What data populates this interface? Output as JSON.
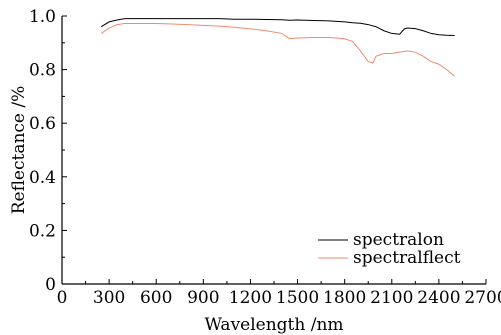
{
  "chart_data": {
    "type": "line",
    "title": "",
    "xlabel": "Wavelength /nm",
    "ylabel": "Reflectance /%",
    "xlim": [
      0,
      2700
    ],
    "ylim": [
      0,
      1.0
    ],
    "x_ticks": [
      0,
      300,
      600,
      900,
      1200,
      1500,
      1800,
      2100,
      2400,
      2700
    ],
    "y_ticks": [
      0,
      0.2,
      0.4,
      0.6,
      0.8,
      1.0
    ],
    "x_tick_labels": [
      "0",
      "300",
      "600",
      "900",
      "1200",
      "1500",
      "1800",
      "2100",
      "2400",
      "2700"
    ],
    "y_tick_labels": [
      "0",
      "0.2",
      "0.4",
      "0.6",
      "0.8",
      "1.0"
    ],
    "grid": false,
    "legend_position": "bottom-right",
    "series": [
      {
        "name": "spectralon",
        "color": "#000000",
        "x": [
          250,
          300,
          350,
          400,
          500,
          600,
          700,
          800,
          900,
          1000,
          1100,
          1200,
          1300,
          1400,
          1450,
          1500,
          1600,
          1700,
          1800,
          1850,
          1900,
          1950,
          2000,
          2050,
          2100,
          2150,
          2180,
          2200,
          2250,
          2300,
          2350,
          2400,
          2450,
          2500
        ],
        "y": [
          0.96,
          0.978,
          0.985,
          0.99,
          0.99,
          0.99,
          0.99,
          0.99,
          0.99,
          0.99,
          0.988,
          0.988,
          0.987,
          0.986,
          0.984,
          0.985,
          0.983,
          0.982,
          0.978,
          0.975,
          0.973,
          0.968,
          0.96,
          0.945,
          0.935,
          0.932,
          0.952,
          0.955,
          0.953,
          0.945,
          0.935,
          0.93,
          0.928,
          0.927
        ]
      },
      {
        "name": "spectralflect",
        "color": "#f08a70",
        "x": [
          250,
          300,
          350,
          400,
          500,
          600,
          700,
          800,
          900,
          1000,
          1100,
          1200,
          1300,
          1400,
          1450,
          1500,
          1600,
          1700,
          1800,
          1850,
          1900,
          1950,
          1980,
          2000,
          2050,
          2100,
          2150,
          2200,
          2250,
          2300,
          2350,
          2400,
          2450,
          2500
        ],
        "y": [
          0.935,
          0.955,
          0.968,
          0.972,
          0.972,
          0.972,
          0.97,
          0.968,
          0.965,
          0.962,
          0.958,
          0.952,
          0.945,
          0.935,
          0.915,
          0.918,
          0.92,
          0.92,
          0.915,
          0.905,
          0.87,
          0.83,
          0.825,
          0.85,
          0.86,
          0.86,
          0.865,
          0.87,
          0.865,
          0.85,
          0.83,
          0.82,
          0.8,
          0.775
        ]
      }
    ]
  }
}
